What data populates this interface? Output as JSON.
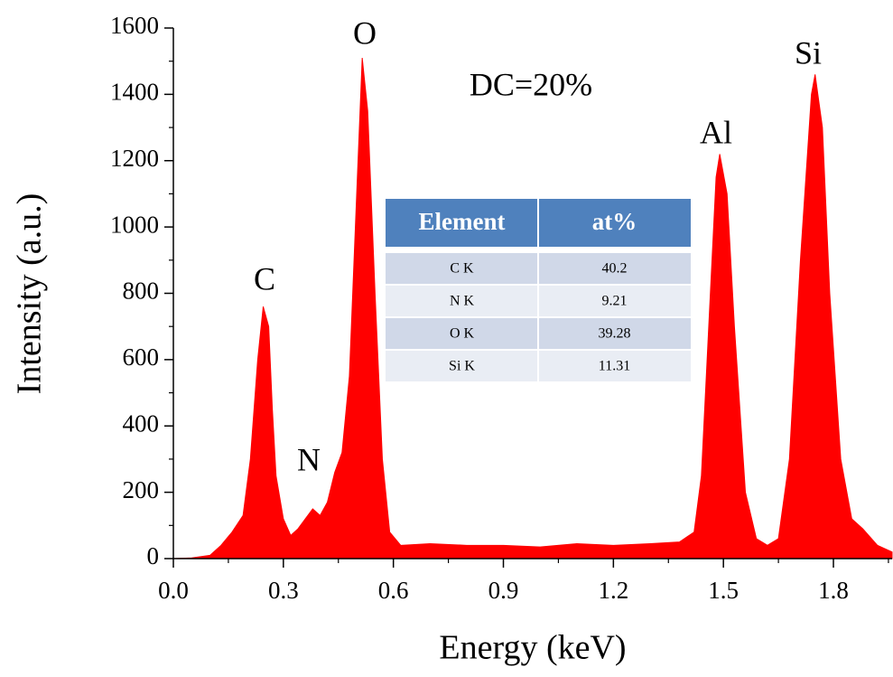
{
  "chart_data": {
    "type": "area",
    "x_label": "Energy (keV)",
    "y_label": "Intensity (a.u.)",
    "color": "#ff0000",
    "x": [
      0.0,
      0.05,
      0.1,
      0.13,
      0.16,
      0.19,
      0.21,
      0.23,
      0.245,
      0.26,
      0.27,
      0.28,
      0.3,
      0.32,
      0.34,
      0.36,
      0.38,
      0.4,
      0.42,
      0.44,
      0.46,
      0.48,
      0.5,
      0.515,
      0.53,
      0.55,
      0.57,
      0.59,
      0.62,
      0.7,
      0.8,
      0.9,
      1.0,
      1.1,
      1.2,
      1.3,
      1.38,
      1.42,
      1.44,
      1.46,
      1.48,
      1.49,
      1.51,
      1.53,
      1.56,
      1.59,
      1.62,
      1.65,
      1.68,
      1.71,
      1.74,
      1.75,
      1.77,
      1.79,
      1.82,
      1.85,
      1.88,
      1.92,
      1.96
    ],
    "values": [
      0,
      2,
      10,
      40,
      80,
      130,
      300,
      600,
      760,
      700,
      450,
      250,
      120,
      70,
      90,
      120,
      150,
      130,
      170,
      260,
      320,
      550,
      1100,
      1510,
      1350,
      800,
      300,
      80,
      40,
      45,
      40,
      40,
      35,
      45,
      40,
      45,
      50,
      80,
      250,
      700,
      1150,
      1220,
      1100,
      700,
      200,
      60,
      40,
      60,
      300,
      900,
      1400,
      1460,
      1300,
      800,
      300,
      120,
      90,
      40,
      20
    ],
    "xlim": [
      0,
      1.96
    ],
    "ylim": [
      0,
      1600
    ],
    "xticks": [
      {
        "value": 0,
        "label": "0.0"
      },
      0.3,
      0.6,
      0.9,
      1.2,
      1.5,
      1.8
    ],
    "yticks": [
      0,
      200,
      400,
      600,
      800,
      1000,
      1200,
      1400,
      1600
    ],
    "annotations": [
      "C",
      "N",
      "O",
      "Al",
      "Si",
      "DC=20%"
    ]
  },
  "table": {
    "header": [
      "Element",
      "at%"
    ],
    "rows": [
      [
        "C K",
        40.2
      ],
      [
        "N K",
        9.21
      ],
      [
        "O K",
        39.28
      ],
      [
        "Si K",
        11.31
      ]
    ]
  }
}
